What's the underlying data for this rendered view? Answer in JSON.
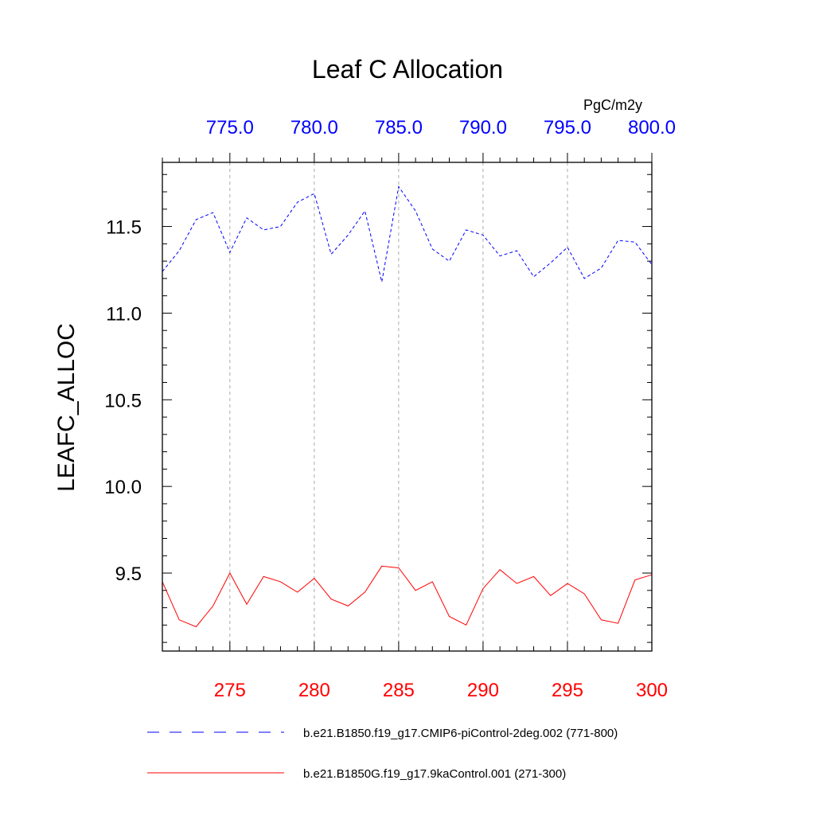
{
  "chart_data": {
    "type": "line",
    "title": "Leaf C Allocation",
    "ylabel": "LEAFC_ALLOC",
    "units": "PgC/m2y",
    "ylim": [
      9.05,
      11.87
    ],
    "y_ticks": [
      9.5,
      10.0,
      10.5,
      11.0,
      11.5
    ],
    "y_tick_labels": [
      "9.5",
      "10.0",
      "10.5",
      "11.0",
      "11.5"
    ],
    "top_axis": {
      "range": [
        771,
        800
      ],
      "ticks": [
        775,
        780,
        785,
        790,
        795,
        800
      ],
      "tick_labels": [
        "775.0",
        "780.0",
        "785.0",
        "790.0",
        "795.0",
        "800.0"
      ],
      "color": "#0000ff"
    },
    "bottom_axis": {
      "range": [
        271,
        300
      ],
      "ticks": [
        275,
        280,
        285,
        290,
        295,
        300
      ],
      "tick_labels": [
        "275",
        "280",
        "285",
        "290",
        "295",
        "300"
      ],
      "color": "#ff0000"
    },
    "grid": "vertical-dashed",
    "legend_position": "bottom",
    "series": [
      {
        "name": "b.e21.B1850.f19_g17.CMIP6-piControl-2deg.002 (771-800)",
        "axis": "top",
        "color": "#0000ff",
        "dash": "dashed",
        "x": [
          771,
          772,
          773,
          774,
          775,
          776,
          777,
          778,
          779,
          780,
          781,
          782,
          783,
          784,
          785,
          786,
          787,
          788,
          789,
          790,
          791,
          792,
          793,
          794,
          795,
          796,
          797,
          798,
          799,
          800
        ],
        "values": [
          11.24,
          11.36,
          11.54,
          11.58,
          11.35,
          11.55,
          11.48,
          11.5,
          11.64,
          11.69,
          11.34,
          11.45,
          11.59,
          11.18,
          11.73,
          11.59,
          11.37,
          11.3,
          11.48,
          11.45,
          11.33,
          11.36,
          11.21,
          11.29,
          11.38,
          11.2,
          11.26,
          11.42,
          11.41,
          11.28
        ]
      },
      {
        "name": "b.e21.B1850G.f19_g17.9kaControl.001 (271-300)",
        "axis": "bottom",
        "color": "#ff0000",
        "dash": "solid",
        "x": [
          271,
          272,
          273,
          274,
          275,
          276,
          277,
          278,
          279,
          280,
          281,
          282,
          283,
          284,
          285,
          286,
          287,
          288,
          289,
          290,
          291,
          292,
          293,
          294,
          295,
          296,
          297,
          298,
          299,
          300
        ],
        "values": [
          9.45,
          9.23,
          9.19,
          9.31,
          9.5,
          9.32,
          9.48,
          9.45,
          9.39,
          9.47,
          9.35,
          9.31,
          9.39,
          9.54,
          9.53,
          9.4,
          9.45,
          9.25,
          9.2,
          9.41,
          9.52,
          9.44,
          9.48,
          9.37,
          9.44,
          9.38,
          9.23,
          9.21,
          9.46,
          9.49
        ]
      }
    ]
  }
}
